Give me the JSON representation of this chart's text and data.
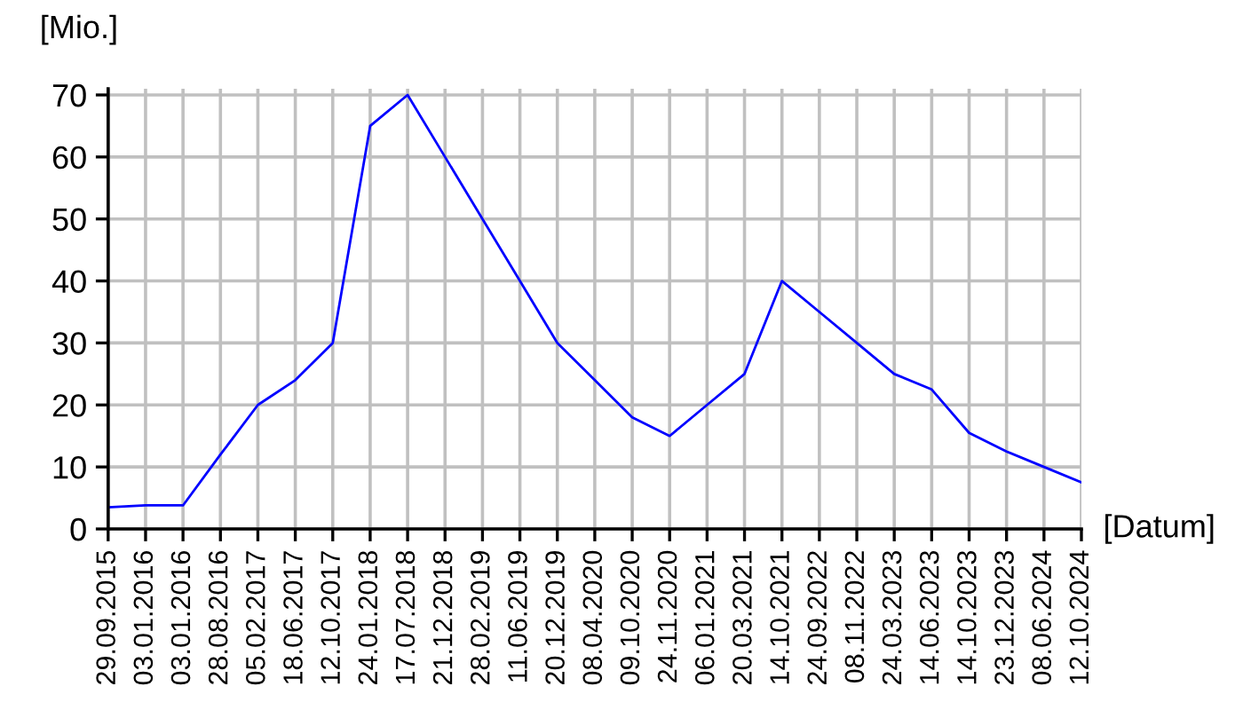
{
  "chart_data": {
    "type": "line",
    "xlabel": "[Datum]",
    "ylabel": "[Mio.]",
    "categories": [
      "29.09.2015",
      "03.01.2016",
      "03.01.2016",
      "28.08.2016",
      "05.02.2017",
      "18.06.2017",
      "12.10.2017",
      "24.01.2018",
      "17.07.2018",
      "21.12.2018",
      "28.02.2019",
      "11.06.2019",
      "20.12.2019",
      "08.04.2020",
      "09.10.2020",
      "24.11.2020",
      "06.01.2021",
      "20.03.2021",
      "14.10.2021",
      "24.09.2022",
      "08.11.2022",
      "24.03.2023",
      "14.06.2023",
      "14.10.2023",
      "23.12.2023",
      "08.06.2024",
      "12.10.2024"
    ],
    "series": [
      {
        "color": "#0000ff",
        "values": [
          3.5,
          3.8,
          3.8,
          12,
          20,
          24,
          30,
          65,
          70,
          60,
          50,
          40,
          30,
          24,
          18,
          15,
          20,
          25,
          40,
          35,
          30,
          25,
          22.5,
          15.5,
          12.5,
          10,
          7.5
        ]
      }
    ],
    "ylim": [
      0,
      71
    ],
    "yticks": [
      0,
      10,
      20,
      30,
      40,
      50,
      60,
      70
    ],
    "grid": true,
    "legend": false,
    "marker": "none",
    "line_style": "solid"
  }
}
